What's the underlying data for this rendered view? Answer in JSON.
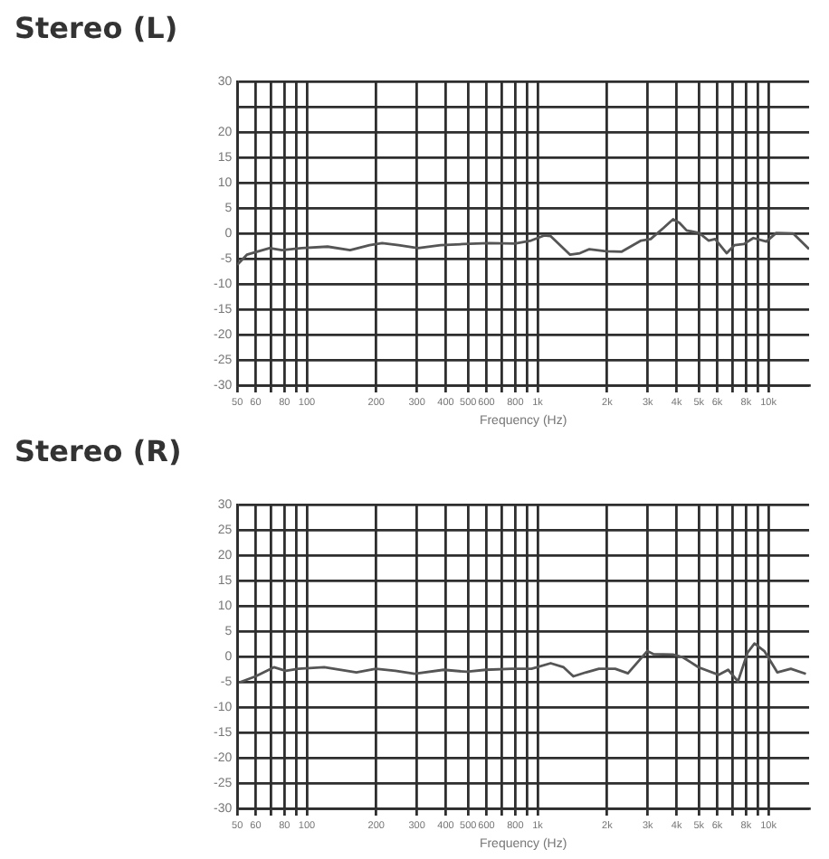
{
  "chart_data": [
    {
      "type": "line",
      "title": "Stereo (L)",
      "xlabel": "Frequency (Hz)",
      "log": "x",
      "grid": true,
      "legend": false,
      "marker": "none",
      "line_style": "solid",
      "xlim": [
        50,
        15000
      ],
      "xticks": [
        50,
        60,
        {
          "value": 70,
          "label": null
        },
        80,
        {
          "value": 90,
          "label": null
        },
        100,
        200,
        300,
        400,
        500,
        600,
        {
          "value": 700,
          "label": null
        },
        800,
        {
          "value": 900,
          "label": null
        },
        {
          "value": 1000,
          "label": "1k"
        },
        {
          "value": 2000,
          "label": "2k"
        },
        {
          "value": 3000,
          "label": "3k"
        },
        {
          "value": 4000,
          "label": "4k"
        },
        {
          "value": 5000,
          "label": "5k"
        },
        {
          "value": 6000,
          "label": "6k"
        },
        {
          "value": 7000,
          "label": null
        },
        {
          "value": 8000,
          "label": "8k"
        },
        {
          "value": 9000,
          "label": null
        },
        {
          "value": 10000,
          "label": "10k"
        }
      ],
      "ylim": [
        -30,
        30
      ],
      "yticks": [
        -30,
        -25,
        -20,
        -15,
        -10,
        -5,
        0,
        5,
        10,
        15,
        20,
        {
          "value": 25,
          "label": null
        },
        30
      ],
      "x": [
        50,
        55,
        69,
        78,
        95,
        123,
        154,
        187,
        212,
        250,
        303,
        380,
        476,
        616,
        797,
        937,
        1067,
        1137,
        1383,
        1524,
        1676,
        1975,
        2315,
        2808,
        3088,
        3513,
        3862,
        4117,
        4423,
        5006,
        5500,
        5875,
        6597,
        7130,
        7832,
        8600,
        9800,
        10800,
        12800,
        15000
      ],
      "series": [
        {
          "color": "#555555",
          "values": [
            -6.2,
            -4.2,
            -2.9,
            -3.3,
            -2.9,
            -2.6,
            -3.3,
            -2.3,
            -1.9,
            -2.3,
            -2.9,
            -2.3,
            -2.1,
            -1.9,
            -2,
            -1.4,
            -0.4,
            -0.5,
            -4.2,
            -3.9,
            -3.1,
            -3.5,
            -3.6,
            -1.4,
            -1.1,
            1.1,
            2.8,
            2.1,
            0.6,
            0.1,
            -1.4,
            -1.1,
            -3.9,
            -2.3,
            -2.1,
            -0.9,
            -1.6,
            0.1,
            0,
            -3.1
          ]
        }
      ]
    },
    {
      "type": "line",
      "title": "Stereo (R)",
      "xlabel": "Frequency (Hz)",
      "log": "x",
      "grid": true,
      "legend": false,
      "marker": "none",
      "line_style": "solid",
      "xlim": [
        50,
        15000
      ],
      "xticks": [
        50,
        60,
        {
          "value": 70,
          "label": null
        },
        80,
        {
          "value": 90,
          "label": null
        },
        100,
        200,
        300,
        400,
        500,
        600,
        {
          "value": 700,
          "label": null
        },
        800,
        {
          "value": 900,
          "label": null
        },
        {
          "value": 1000,
          "label": "1k"
        },
        {
          "value": 2000,
          "label": "2k"
        },
        {
          "value": 3000,
          "label": "3k"
        },
        {
          "value": 4000,
          "label": "4k"
        },
        {
          "value": 5000,
          "label": "5k"
        },
        {
          "value": 6000,
          "label": "6k"
        },
        {
          "value": 7000,
          "label": null
        },
        {
          "value": 8000,
          "label": "8k"
        },
        {
          "value": 9000,
          "label": null
        },
        {
          "value": 10000,
          "label": "10k"
        }
      ],
      "ylim": [
        -30,
        30
      ],
      "yticks": [
        -30,
        -25,
        -20,
        -15,
        -10,
        -5,
        0,
        5,
        10,
        15,
        20,
        25,
        30
      ],
      "x": [
        51,
        60,
        72,
        81,
        92,
        119,
        164,
        199,
        242,
        293,
        392,
        493,
        596,
        772,
        941,
        1139,
        1296,
        1428,
        1622,
        1843,
        2167,
        2462,
        2985,
        3180,
        3856,
        4248,
        4980,
        6090,
        6690,
        7380,
        8120,
        8700,
        9600,
        10920,
        12500,
        14530
      ],
      "series": [
        {
          "color": "#555555",
          "values": [
            -5.1,
            -3.9,
            -2.1,
            -2.8,
            -2.4,
            -2.1,
            -3.1,
            -2.4,
            -2.8,
            -3.4,
            -2.6,
            -3,
            -2.6,
            -2.4,
            -2.4,
            -1.3,
            -2.1,
            -3.9,
            -3.1,
            -2.4,
            -2.4,
            -3.3,
            1.1,
            0.5,
            0.4,
            -0.1,
            -2.1,
            -3.6,
            -2.6,
            -4.9,
            0.8,
            2.6,
            1.1,
            -3.1,
            -2.4,
            -3.4
          ]
        }
      ]
    }
  ]
}
